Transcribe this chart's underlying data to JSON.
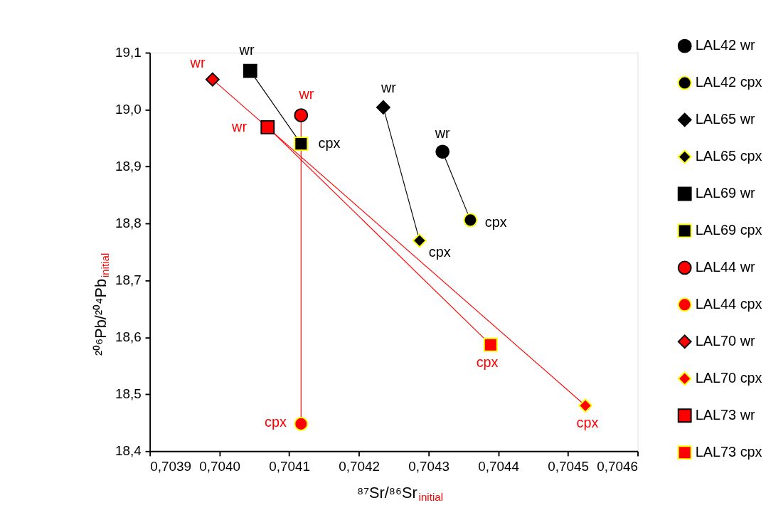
{
  "chart_data": {
    "type": "scatter",
    "xlabel": "⁸⁷Sr/⁸⁶Sr$_{initial}$",
    "ylabel": "²⁰⁶Pb/²⁰⁴Pb$_{initial}$",
    "xlim": [
      0.7039,
      0.7046
    ],
    "xticks": [
      {
        "value": 0.7039,
        "label": "0,7039"
      },
      {
        "value": 0.704,
        "label": "0,7040"
      },
      {
        "value": 0.7041,
        "label": "0,7041"
      },
      {
        "value": 0.7042,
        "label": "0,7042"
      },
      {
        "value": 0.7043,
        "label": "0,7043"
      },
      {
        "value": 0.7044,
        "label": "0,7044"
      },
      {
        "value": 0.7045,
        "label": "0,7045"
      },
      {
        "value": 0.7046,
        "label": "0,7046"
      }
    ],
    "ylim": [
      18.4,
      19.1
    ],
    "yticks": [
      {
        "value": 18.4,
        "label": "18,4"
      },
      {
        "value": 18.5,
        "label": "18,5"
      },
      {
        "value": 18.6,
        "label": "18,6"
      },
      {
        "value": 18.7,
        "label": "18,7"
      },
      {
        "value": 18.8,
        "label": "18,8"
      },
      {
        "value": 18.9,
        "label": "18,9"
      },
      {
        "value": 19.0,
        "label": "19,0"
      },
      {
        "value": 19.1,
        "label": "19,1"
      }
    ],
    "grid": false,
    "legend": "right",
    "series": [
      {
        "name": "LAL42 wr",
        "marker": "circle",
        "color": "#000000",
        "x": [
          0.70432
        ],
        "values": [
          18.926
        ]
      },
      {
        "name": "LAL42 cpx",
        "marker": "circle",
        "color": "#000000",
        "x": [
          0.70436
        ],
        "values": [
          18.806
        ]
      },
      {
        "name": "LAL65 wr",
        "marker": "diamond",
        "color": "#000000",
        "x": [
          0.704235
        ],
        "values": [
          19.004
        ]
      },
      {
        "name": "LAL65 cpx",
        "marker": "diamond",
        "color": "#000000",
        "x": [
          0.704287
        ],
        "values": [
          18.77
        ]
      },
      {
        "name": "LAL69 wr",
        "marker": "square",
        "color": "#000000",
        "x": [
          0.704044
        ],
        "values": [
          19.068
        ]
      },
      {
        "name": "LAL69 cpx",
        "marker": "square",
        "color": "#000000",
        "x": [
          0.704117
        ],
        "values": [
          18.94
        ]
      },
      {
        "name": "LAL44 wr",
        "marker": "circle",
        "color": "#ff0000",
        "x": [
          0.704117
        ],
        "values": [
          18.99
        ]
      },
      {
        "name": "LAL44 cpx",
        "marker": "circle",
        "color": "#ff0000",
        "x": [
          0.704117
        ],
        "values": [
          18.448
        ]
      },
      {
        "name": "LAL70 wr",
        "marker": "diamond",
        "color": "#ff0000",
        "x": [
          0.70399
        ],
        "values": [
          19.053
        ]
      },
      {
        "name": "LAL70 cpx",
        "marker": "diamond",
        "color": "#ff0000",
        "x": [
          0.704525
        ],
        "values": [
          18.48
        ]
      },
      {
        "name": "LAL73 wr",
        "marker": "square",
        "color": "#ff0000",
        "x": [
          0.704069
        ],
        "values": [
          18.969
        ]
      },
      {
        "name": "LAL73 cpx",
        "marker": "square",
        "color": "#ff0000",
        "x": [
          0.704389
        ],
        "values": [
          18.587
        ]
      },
      {
        "type": "line",
        "color": "#000000",
        "x": [
          0.70432,
          0.70436
        ],
        "values": [
          18.926,
          18.806
        ]
      },
      {
        "type": "line",
        "color": "#000000",
        "x": [
          0.704235,
          0.704287
        ],
        "values": [
          19.004,
          18.77
        ]
      },
      {
        "type": "line",
        "color": "#000000",
        "x": [
          0.704044,
          0.704117
        ],
        "values": [
          19.068,
          18.94
        ]
      },
      {
        "type": "line",
        "color": "#ff0000",
        "x": [
          0.704117,
          0.704117
        ],
        "values": [
          18.99,
          18.448
        ]
      },
      {
        "type": "line",
        "color": "#ff0000",
        "x": [
          0.70399,
          0.704525
        ],
        "values": [
          19.053,
          18.48
        ]
      },
      {
        "type": "line",
        "color": "#ff0000",
        "x": [
          0.704069,
          0.704389
        ],
        "values": [
          18.969,
          18.587
        ]
      }
    ],
    "annotations": [
      {
        "text": "wr",
        "x": 0.70432,
        "y": 18.926
      },
      {
        "text": "cpx",
        "x": 0.70436,
        "y": 18.806
      },
      {
        "text": "wr",
        "x": 0.704235,
        "y": 19.004
      },
      {
        "text": "cpx",
        "x": 0.704287,
        "y": 18.77
      },
      {
        "text": "wr",
        "x": 0.704044,
        "y": 19.068
      },
      {
        "text": "cpx",
        "x": 0.704117,
        "y": 18.94
      },
      {
        "text": "wr",
        "x": 0.704117,
        "y": 18.99
      },
      {
        "text": "cpx",
        "x": 0.704117,
        "y": 18.448
      },
      {
        "text": "wr",
        "x": 0.70399,
        "y": 19.053
      },
      {
        "text": "cpx",
        "x": 0.704525,
        "y": 18.48
      },
      {
        "text": "wr",
        "x": 0.704069,
        "y": 18.969
      },
      {
        "text": "cpx",
        "x": 0.704389,
        "y": 18.587
      }
    ]
  }
}
